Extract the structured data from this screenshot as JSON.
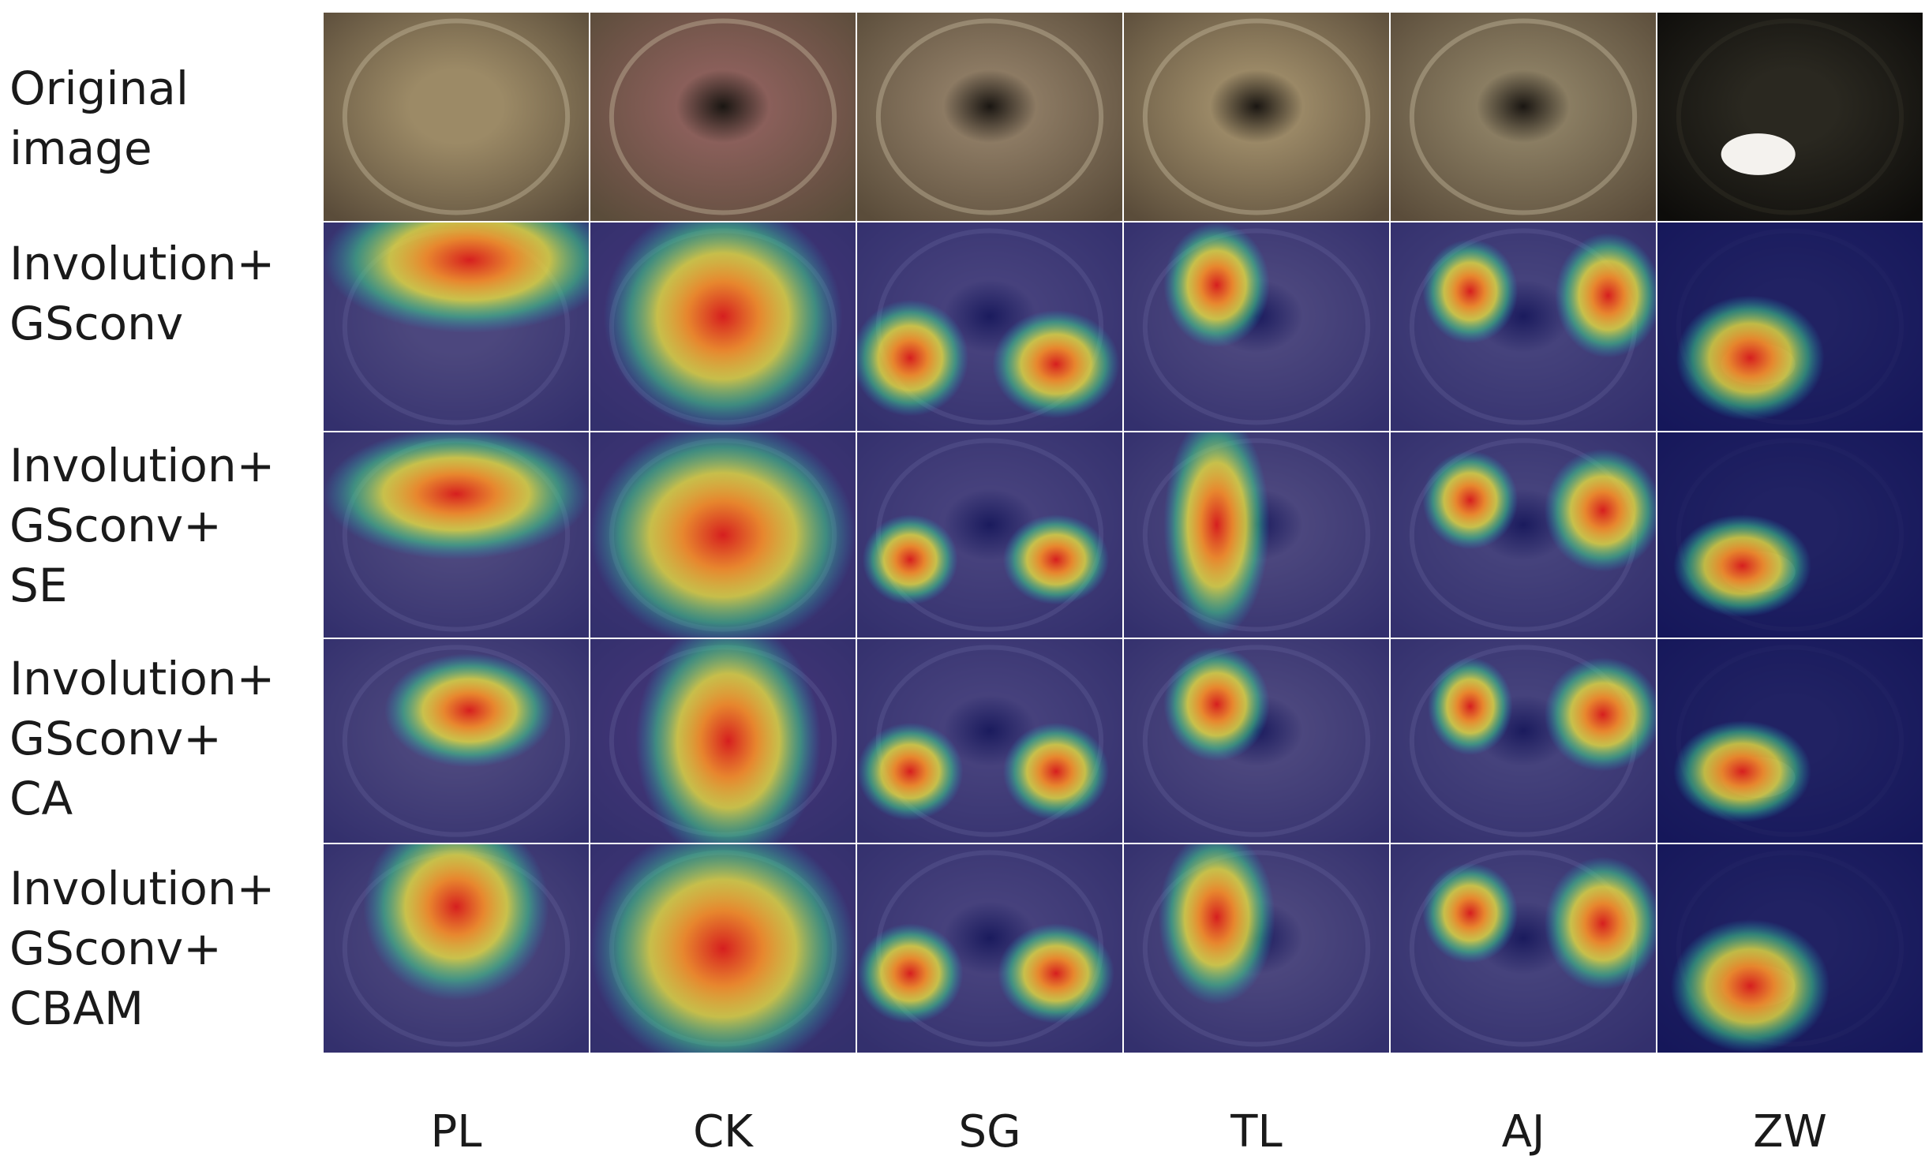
{
  "figure": {
    "rows": [
      {
        "label": "Original\nimage",
        "type": "original"
      },
      {
        "label": "Involution+\nGSconv",
        "type": "heat"
      },
      {
        "label": "Involution+\nGSconv+\nSE",
        "type": "heat"
      },
      {
        "label": "Involution+\nGSconv+\nCA",
        "type": "heat"
      },
      {
        "label": "Involution+\nGSconv+\nCBAM",
        "type": "heat"
      }
    ],
    "columns": [
      "PL",
      "CK",
      "SG",
      "TL",
      "AJ",
      "ZW"
    ],
    "scene_colors": [
      "#9c8a66",
      "#8a5f5a",
      "#8c7a63",
      "#9a8866",
      "#8a7d62",
      "#2a2820"
    ],
    "heatmap_palette": [
      "#1c1f8c",
      "#1fa3c8",
      "#3fd28a",
      "#e8e040",
      "#f08a2a",
      "#d61f1f"
    ]
  }
}
